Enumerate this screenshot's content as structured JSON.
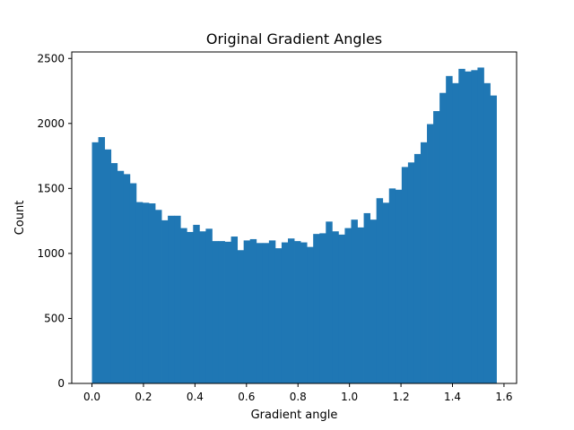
{
  "chart_data": {
    "type": "bar",
    "title": "Original Gradient Angles",
    "xlabel": "Gradient angle",
    "ylabel": "Count",
    "xlim": [
      -0.0785,
      1.649
    ],
    "ylim": [
      0,
      2550
    ],
    "bar_color": "#1f77b4",
    "bin_range": [
      0,
      1.5708
    ],
    "x_ticks": [
      {
        "value": 0.0,
        "label": "0.0"
      },
      {
        "value": 0.2,
        "label": "0.2"
      },
      {
        "value": 0.4,
        "label": "0.4"
      },
      {
        "value": 0.6,
        "label": "0.6"
      },
      {
        "value": 0.8,
        "label": "0.8"
      },
      {
        "value": 1.0,
        "label": "1.0"
      },
      {
        "value": 1.2,
        "label": "1.2"
      },
      {
        "value": 1.4,
        "label": "1.4"
      },
      {
        "value": 1.6,
        "label": "1.6"
      }
    ],
    "y_ticks": [
      {
        "value": 0,
        "label": "0"
      },
      {
        "value": 500,
        "label": "500"
      },
      {
        "value": 1000,
        "label": "1000"
      },
      {
        "value": 1500,
        "label": "1500"
      },
      {
        "value": 2000,
        "label": "2000"
      },
      {
        "value": 2500,
        "label": "2500"
      }
    ],
    "values": [
      1855,
      1895,
      1800,
      1695,
      1635,
      1610,
      1540,
      1395,
      1390,
      1385,
      1335,
      1255,
      1290,
      1290,
      1195,
      1165,
      1220,
      1170,
      1190,
      1095,
      1095,
      1090,
      1130,
      1025,
      1100,
      1110,
      1080,
      1080,
      1100,
      1040,
      1085,
      1115,
      1095,
      1085,
      1050,
      1150,
      1155,
      1245,
      1170,
      1145,
      1195,
      1260,
      1200,
      1310,
      1260,
      1425,
      1390,
      1500,
      1490,
      1665,
      1700,
      1765,
      1855,
      1995,
      2095,
      2235,
      2365,
      2310,
      2420,
      2400,
      2410,
      2430,
      2310,
      2215
    ]
  }
}
